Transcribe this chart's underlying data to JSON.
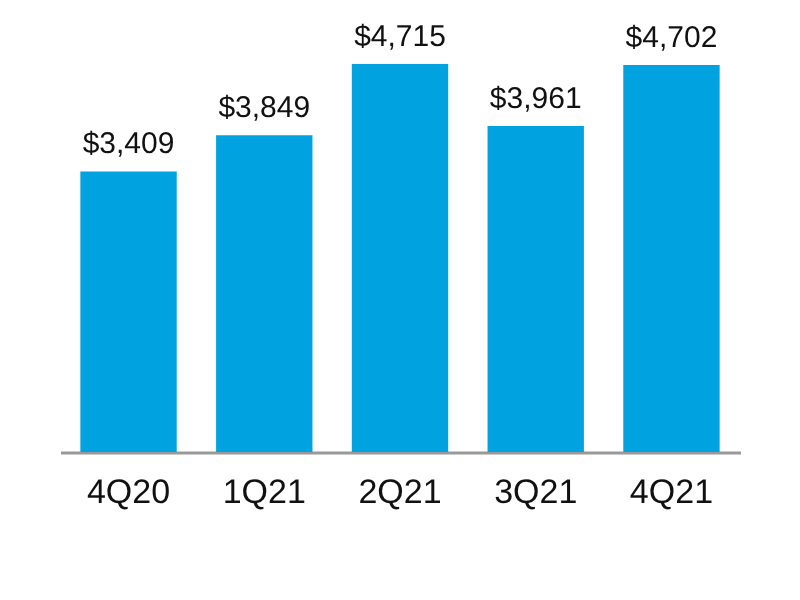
{
  "chart_data": {
    "type": "bar",
    "categories": [
      "4Q20",
      "1Q21",
      "2Q21",
      "3Q21",
      "4Q21"
    ],
    "values": [
      3409,
      3849,
      4715,
      3961,
      4702
    ],
    "value_labels": [
      "$3,409",
      "$3,849",
      "$4,715",
      "$3,961",
      "$4,702"
    ],
    "color": "#00a3e0",
    "tick_labels": "x",
    "grid": false
  }
}
